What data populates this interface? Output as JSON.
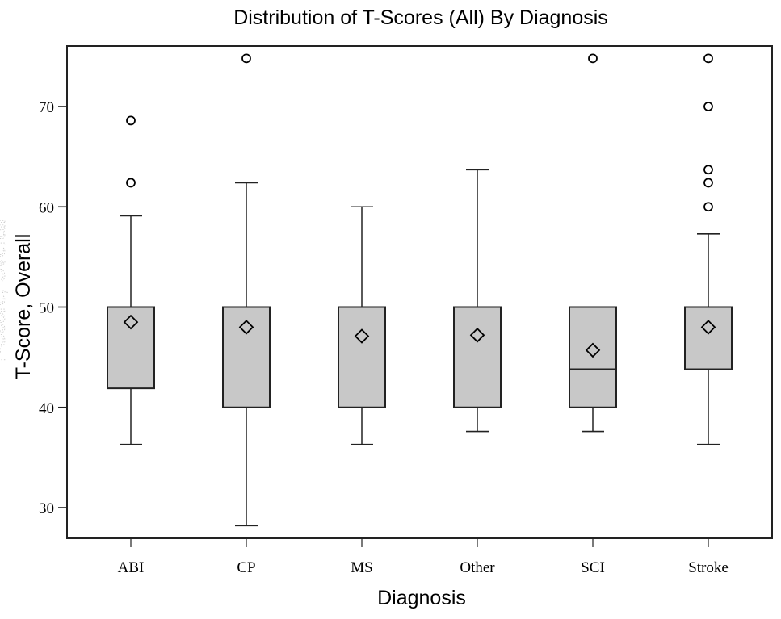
{
  "chart_data": {
    "type": "box",
    "title": "Distribution of T-Scores (All) By Diagnosis",
    "xlabel": "Diagnosis",
    "ylabel": "T-Score, Overall",
    "ylim": [
      26,
      76
    ],
    "yticks": [
      30,
      40,
      50,
      60,
      70
    ],
    "grid": false,
    "legend": "none",
    "colors": {
      "box_fill": "#c8c8c8",
      "stroke": "#222222",
      "background": "#ffffff"
    },
    "categories": [
      "ABI",
      "CP",
      "MS",
      "Other",
      "SCI",
      "Stroke"
    ],
    "series": [
      {
        "name": "ABI",
        "whisker_low": 36.3,
        "q1": 41.9,
        "median": 50.0,
        "q3": 50.0,
        "whisker_high": 59.1,
        "mean": 48.5,
        "outliers": [
          62.4,
          68.6
        ]
      },
      {
        "name": "CP",
        "whisker_low": 28.2,
        "q1": 40.0,
        "median": 50.0,
        "q3": 50.0,
        "whisker_high": 62.4,
        "mean": 48.0,
        "outliers": [
          74.8
        ]
      },
      {
        "name": "MS",
        "whisker_low": 36.3,
        "q1": 40.0,
        "median": 50.0,
        "q3": 50.0,
        "whisker_high": 60.0,
        "mean": 47.1,
        "outliers": []
      },
      {
        "name": "Other",
        "whisker_low": 37.6,
        "q1": 40.0,
        "median": 50.0,
        "q3": 50.0,
        "whisker_high": 63.7,
        "mean": 47.2,
        "outliers": []
      },
      {
        "name": "SCI",
        "whisker_low": 37.6,
        "q1": 40.0,
        "median": 43.8,
        "q3": 50.0,
        "whisker_high": 50.0,
        "mean": 45.7,
        "outliers": [
          74.8
        ]
      },
      {
        "name": "Stroke",
        "whisker_low": 36.3,
        "q1": 43.8,
        "median": 50.0,
        "q3": 50.0,
        "whisker_high": 57.3,
        "mean": 48.0,
        "outliers": [
          60.0,
          62.4,
          63.7,
          70.0,
          74.8
        ]
      }
    ]
  }
}
